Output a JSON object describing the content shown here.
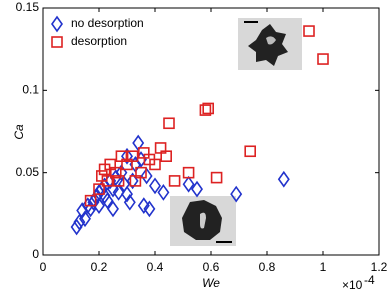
{
  "chart_data": {
    "type": "scatter",
    "x_label": "We",
    "y_label": "Ca",
    "x_multiplier": {
      "base": "×10",
      "exponent": "-4"
    },
    "xlim": [
      0,
      1.2
    ],
    "xticks": [
      0,
      0.2,
      0.4,
      0.6,
      0.8,
      1,
      1.2
    ],
    "ylim": [
      0,
      0.15
    ],
    "yticks": [
      0,
      0.05,
      0.1,
      0.15
    ],
    "grid": false,
    "legend": "upper left",
    "series": [
      {
        "name": "no desorption",
        "color": "#2233cc",
        "marker": "diamond",
        "x": [
          0.12,
          0.13,
          0.14,
          0.15,
          0.16,
          0.17,
          0.18,
          0.19,
          0.2,
          0.2,
          0.21,
          0.22,
          0.22,
          0.23,
          0.24,
          0.25,
          0.25,
          0.26,
          0.27,
          0.28,
          0.29,
          0.3,
          0.31,
          0.32,
          0.33,
          0.34,
          0.35,
          0.36,
          0.37,
          0.38,
          0.4,
          0.43,
          0.52,
          0.55,
          0.69,
          0.86,
          0.3
        ],
        "values": [
          0.017,
          0.02,
          0.027,
          0.022,
          0.03,
          0.028,
          0.032,
          0.035,
          0.03,
          0.038,
          0.04,
          0.036,
          0.042,
          0.033,
          0.045,
          0.04,
          0.028,
          0.047,
          0.038,
          0.05,
          0.043,
          0.037,
          0.032,
          0.045,
          0.055,
          0.068,
          0.058,
          0.03,
          0.048,
          0.028,
          0.042,
          0.038,
          0.043,
          0.04,
          0.037,
          0.046,
          0.06
        ]
      },
      {
        "name": "desorption",
        "color": "#dd2222",
        "marker": "square",
        "x": [
          0.17,
          0.2,
          0.21,
          0.22,
          0.23,
          0.24,
          0.26,
          0.28,
          0.3,
          0.32,
          0.33,
          0.35,
          0.36,
          0.38,
          0.4,
          0.42,
          0.45,
          0.47,
          0.52,
          0.58,
          0.59,
          0.62,
          0.74,
          0.95,
          1.0,
          0.44,
          0.27
        ],
        "values": [
          0.033,
          0.04,
          0.048,
          0.052,
          0.045,
          0.055,
          0.05,
          0.06,
          0.055,
          0.06,
          0.045,
          0.05,
          0.062,
          0.058,
          0.055,
          0.065,
          0.08,
          0.045,
          0.05,
          0.088,
          0.089,
          0.047,
          0.063,
          0.136,
          0.119,
          0.06,
          0.045
        ]
      }
    ]
  }
}
